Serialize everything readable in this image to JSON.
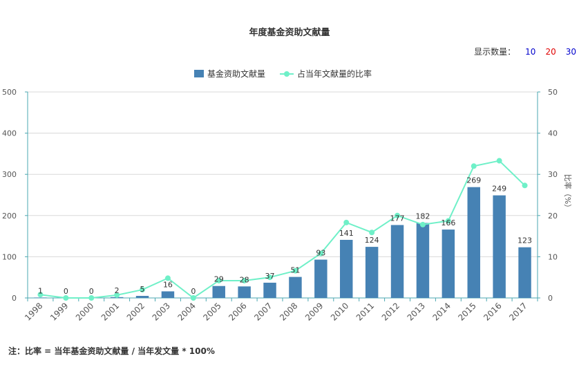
{
  "title": "年度基金资助文献量",
  "display_count": {
    "label": "显示数量：",
    "options": [
      {
        "label": "10",
        "color": "#0000cc"
      },
      {
        "label": "20",
        "color": "#e00000"
      },
      {
        "label": "30",
        "color": "#0000cc"
      }
    ]
  },
  "note": "注：比率 = 当年基金资助文献量 / 当年发文量 * 100%",
  "colors": {
    "bar": "#4682b4",
    "line": "#6ff0c8",
    "axis": "#4aa7b0",
    "grid": "#d8d8d8"
  },
  "chart_data": {
    "type": "bar",
    "categories": [
      "1998",
      "1999",
      "2000",
      "2001",
      "2002",
      "2003",
      "2004",
      "2005",
      "2006",
      "2007",
      "2008",
      "2009",
      "2010",
      "2011",
      "2012",
      "2013",
      "2014",
      "2015",
      "2016",
      "2017"
    ],
    "series": [
      {
        "name": "基金资助文献量",
        "type": "bar",
        "axis": "left",
        "values": [
          1,
          0,
          0,
          2,
          5,
          16,
          0,
          29,
          28,
          37,
          51,
          93,
          141,
          124,
          177,
          182,
          166,
          269,
          249,
          123
        ],
        "labels": [
          "1",
          "0",
          "0",
          "2",
          "5",
          "16",
          "0",
          "29",
          "28",
          "37",
          "51",
          "93",
          "141",
          "124",
          "177",
          "182",
          "166",
          "269",
          "249",
          "123"
        ]
      },
      {
        "name": "占当年文献量的比率",
        "type": "line",
        "axis": "right",
        "values": [
          0.8,
          0,
          0,
          0.7,
          2,
          4.8,
          0,
          4.2,
          4.2,
          5,
          6.6,
          10.8,
          18.3,
          15.9,
          20,
          17.8,
          18.7,
          32,
          33.3,
          27.3
        ]
      }
    ],
    "y_left": {
      "label": "",
      "ylim": [
        0,
        500
      ],
      "ticks": [
        "0",
        "100",
        "200",
        "300",
        "400",
        "500"
      ]
    },
    "y_right": {
      "label": "比率（%）",
      "ylim": [
        0,
        50
      ],
      "ticks": [
        "0",
        "10",
        "20",
        "30",
        "40",
        "50"
      ]
    },
    "grid": true,
    "legend": "top-center"
  }
}
